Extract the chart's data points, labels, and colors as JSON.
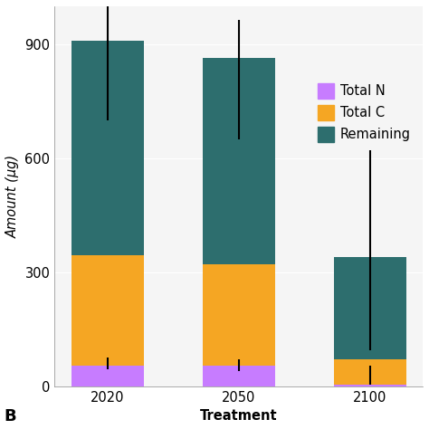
{
  "categories": [
    "2020",
    "2050",
    "2100"
  ],
  "total_n": [
    55,
    55,
    5
  ],
  "total_c": [
    290,
    265,
    65
  ],
  "remaining": [
    565,
    545,
    270
  ],
  "total_n_color": "#c77cff",
  "total_c_color": "#f5a623",
  "remaining_color": "#2d6e6e",
  "err_centers": [
    910,
    860,
    345
  ],
  "err_lower": [
    700,
    650,
    95
  ],
  "err_upper": [
    1010,
    965,
    620
  ],
  "err_centers_low": [
    60,
    55,
    30
  ],
  "err_lower_low": [
    45,
    40,
    5
  ],
  "err_upper_low": [
    75,
    70,
    55
  ],
  "ylabel": "Amount (μg)",
  "xlabel": "Treatment",
  "ylim": [
    0,
    1000
  ],
  "yticks": [
    0,
    300,
    600,
    900
  ],
  "panel_label": "B",
  "legend_labels": [
    "Total N",
    "Total C",
    "Remaining"
  ],
  "bar_width": 0.55,
  "background_color": "#ffffff",
  "font_size": 10.5,
  "figsize": [
    4.74,
    4.74
  ],
  "dpi": 100
}
